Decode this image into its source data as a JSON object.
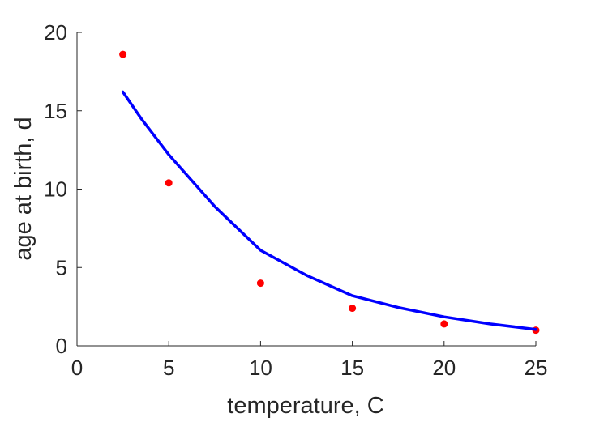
{
  "chart_data": {
    "type": "scatter",
    "title": "",
    "xlabel": "temperature, C",
    "ylabel": "age at birth, d",
    "xlim": [
      0,
      25
    ],
    "ylim": [
      0,
      20
    ],
    "xticks": [
      0,
      5,
      10,
      15,
      20,
      25
    ],
    "yticks": [
      0,
      5,
      10,
      15,
      20
    ],
    "grid": false,
    "legend": "none",
    "series": [
      {
        "type": "scatter",
        "color": "#ff0000",
        "x": [
          2.5,
          5,
          10,
          15,
          20,
          25
        ],
        "y": [
          18.6,
          10.4,
          4.0,
          2.4,
          1.4,
          1.0
        ]
      },
      {
        "type": "line",
        "color": "#0000ff",
        "x": [
          2.5,
          3.5,
          5,
          7.5,
          10,
          12.5,
          15,
          17.5,
          20,
          22.5,
          25
        ],
        "y": [
          16.2,
          14.5,
          12.2,
          8.9,
          6.1,
          4.5,
          3.2,
          2.45,
          1.85,
          1.4,
          1.05
        ]
      }
    ]
  }
}
